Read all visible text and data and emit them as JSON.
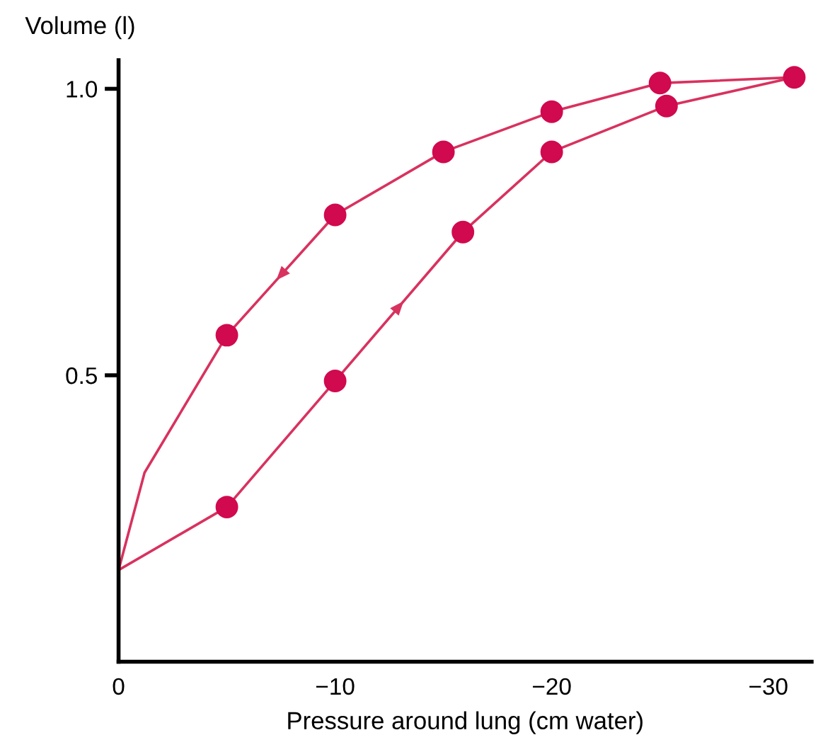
{
  "chart_data": {
    "type": "line",
    "xlabel": "Pressure around lung (cm water)",
    "ylabel": "Volume (l)",
    "xlim": [
      0,
      -32
    ],
    "xticks": [
      0,
      {
        "value": -10,
        "label": "−10"
      },
      {
        "value": -20,
        "label": "−20"
      },
      {
        "value": -30,
        "label": "−30"
      }
    ],
    "ylim": [
      0,
      1.05
    ],
    "yticks": [
      {
        "value": 0.5,
        "label": "0.5"
      },
      {
        "value": 1.0,
        "label": "1.0"
      }
    ],
    "grid": false,
    "legend": false,
    "series": [
      {
        "marker": "none",
        "color": "#d8325e",
        "x": [
          0,
          -5,
          -10,
          -15.9,
          -20,
          -25.3,
          -31.2
        ],
        "values": [
          0.16,
          0.27,
          0.49,
          0.75,
          0.89,
          0.97,
          1.02
        ]
      },
      {
        "marker": "none",
        "color": "#d8325e",
        "x": [
          -31.2,
          -25,
          -20,
          -15,
          -10,
          -5,
          -1.2,
          0
        ],
        "values": [
          1.02,
          1.01,
          0.96,
          0.89,
          0.78,
          0.57,
          0.33,
          0.16
        ]
      },
      {
        "type": "scatter",
        "marker": "circle",
        "color": "#d1094f",
        "x": [
          -5,
          -10,
          -15.9,
          -20,
          -25.3
        ],
        "values": [
          0.27,
          0.49,
          0.75,
          0.89,
          0.97
        ]
      },
      {
        "type": "scatter",
        "marker": "circle",
        "color": "#d1094f",
        "x": [
          -5,
          -10,
          -15,
          -20,
          -25,
          -31.2
        ],
        "values": [
          0.57,
          0.78,
          0.89,
          0.96,
          1.01,
          1.02
        ]
      }
    ]
  }
}
